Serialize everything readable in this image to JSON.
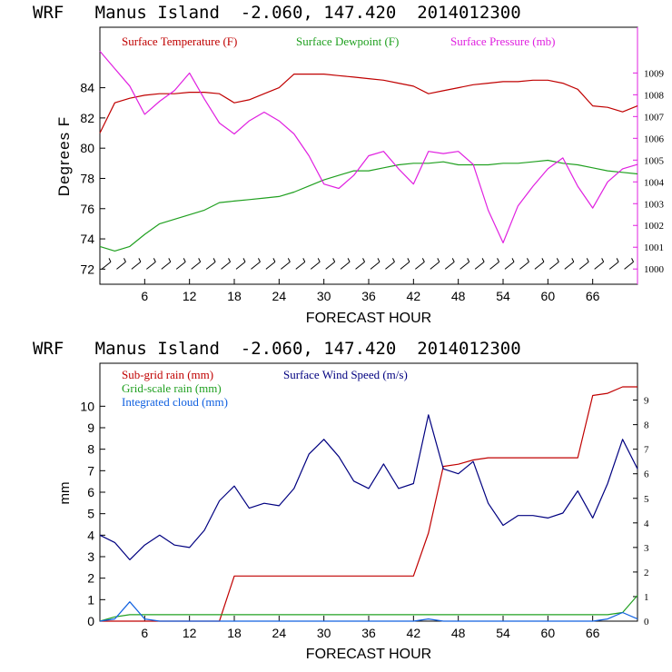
{
  "chart_data": [
    {
      "type": "line",
      "title": "WRF   Manus Island  -2.060, 147.420  2014012300",
      "xlabel": "FORECAST HOUR",
      "ylabel": "Degrees F",
      "xlim": [
        0,
        72
      ],
      "ylim": [
        71,
        88
      ],
      "y2lim": [
        999.3,
        1011.1
      ],
      "x_ticks": [
        6,
        12,
        18,
        24,
        30,
        36,
        42,
        48,
        54,
        60,
        66
      ],
      "y_ticks": [
        72,
        74,
        76,
        78,
        80,
        82,
        84
      ],
      "y2_ticks": [
        1000,
        1001,
        1002,
        1003,
        1004,
        1005,
        1006,
        1007,
        1008,
        1009
      ],
      "grid": false,
      "legend": "top",
      "colors": {
        "temperature": "#c00000",
        "dewpoint": "#20a020",
        "pressure": "#e020e0",
        "wind": "#000080",
        "axis": "#000000",
        "frame_right": "#e020e0"
      },
      "x": [
        0,
        2,
        4,
        6,
        8,
        10,
        12,
        14,
        16,
        18,
        20,
        22,
        24,
        26,
        28,
        30,
        32,
        34,
        36,
        38,
        40,
        42,
        44,
        46,
        48,
        50,
        52,
        54,
        56,
        58,
        60,
        62,
        64,
        66,
        68,
        70,
        72
      ],
      "series": [
        {
          "name": "Surface Temperature (F)",
          "axis": "left",
          "color": "#c00000",
          "values": [
            81.0,
            83.0,
            83.3,
            83.5,
            83.6,
            83.6,
            83.7,
            83.7,
            83.6,
            83.0,
            83.2,
            83.6,
            84.0,
            84.9,
            84.9,
            84.9,
            84.8,
            84.7,
            84.6,
            84.5,
            84.3,
            84.1,
            83.6,
            83.8,
            84.0,
            84.2,
            84.3,
            84.4,
            84.4,
            84.5,
            84.5,
            84.3,
            83.9,
            82.8,
            82.7,
            82.4,
            82.8
          ]
        },
        {
          "name": "Surface Dewpoint (F)",
          "axis": "left",
          "color": "#20a020",
          "values": [
            73.5,
            73.2,
            73.5,
            74.3,
            75.0,
            75.3,
            75.6,
            75.9,
            76.4,
            76.5,
            76.6,
            76.7,
            76.8,
            77.1,
            77.5,
            77.9,
            78.2,
            78.5,
            78.5,
            78.7,
            78.9,
            79.0,
            79.0,
            79.1,
            78.9,
            78.9,
            78.9,
            79.0,
            79.0,
            79.1,
            79.2,
            79.0,
            78.9,
            78.7,
            78.5,
            78.4,
            78.3
          ]
        },
        {
          "name": "Surface Pressure (mb)",
          "axis": "right",
          "color": "#e020e0",
          "values": [
            1010.0,
            1009.2,
            1008.4,
            1007.1,
            1007.7,
            1008.2,
            1009.0,
            1007.8,
            1006.7,
            1006.2,
            1006.8,
            1007.2,
            1006.8,
            1006.2,
            1005.2,
            1003.9,
            1003.7,
            1004.3,
            1005.2,
            1005.4,
            1004.6,
            1003.9,
            1005.4,
            1005.3,
            1005.4,
            1004.8,
            1002.7,
            1001.2,
            1002.9,
            1003.8,
            1004.6,
            1005.1,
            1003.8,
            1002.8,
            1004.0,
            1004.6,
            1004.8
          ]
        }
      ],
      "wind_barbs": {
        "x": [
          0,
          2,
          4,
          6,
          8,
          10,
          12,
          14,
          16,
          18,
          20,
          22,
          24,
          26,
          28,
          30,
          32,
          34,
          36,
          38,
          40,
          42,
          44,
          46,
          48,
          50,
          52,
          54,
          56,
          58,
          60,
          62,
          64,
          66,
          68,
          70
        ],
        "y": 72
      }
    },
    {
      "type": "line",
      "title": "WRF   Manus Island  -2.060, 147.420  2014012300",
      "xlabel": "FORECAST HOUR",
      "ylabel": "mm",
      "xlim": [
        0,
        72
      ],
      "ylim": [
        0,
        12
      ],
      "y2lim": [
        0,
        10.5
      ],
      "x_ticks": [
        6,
        12,
        18,
        24,
        30,
        36,
        42,
        48,
        54,
        60,
        66
      ],
      "y_ticks": [
        0,
        1,
        2,
        3,
        4,
        5,
        6,
        7,
        8,
        9,
        10
      ],
      "y2_ticks": [
        0,
        1,
        2,
        3,
        4,
        5,
        6,
        7,
        8,
        9
      ],
      "grid": false,
      "legend": "top-left",
      "x": [
        0,
        2,
        4,
        6,
        8,
        10,
        12,
        14,
        16,
        18,
        20,
        22,
        24,
        26,
        28,
        30,
        32,
        34,
        36,
        38,
        40,
        42,
        44,
        46,
        48,
        50,
        52,
        54,
        56,
        58,
        60,
        62,
        64,
        66,
        68,
        70,
        72
      ],
      "series": [
        {
          "name": "Sub-grid rain (mm)",
          "axis": "left",
          "color": "#c00000",
          "values": [
            0,
            0,
            0,
            0,
            0,
            0,
            0,
            0,
            0,
            2.1,
            2.1,
            2.1,
            2.1,
            2.1,
            2.1,
            2.1,
            2.1,
            2.1,
            2.1,
            2.1,
            2.1,
            2.1,
            4.1,
            7.2,
            7.3,
            7.5,
            7.6,
            7.6,
            7.6,
            7.6,
            7.6,
            7.6,
            7.6,
            10.5,
            10.6,
            10.9,
            10.9
          ]
        },
        {
          "name": "Grid-scale rain (mm)",
          "axis": "left",
          "color": "#20a020",
          "values": [
            0,
            0.2,
            0.3,
            0.3,
            0.3,
            0.3,
            0.3,
            0.3,
            0.3,
            0.3,
            0.3,
            0.3,
            0.3,
            0.3,
            0.3,
            0.3,
            0.3,
            0.3,
            0.3,
            0.3,
            0.3,
            0.3,
            0.3,
            0.3,
            0.3,
            0.3,
            0.3,
            0.3,
            0.3,
            0.3,
            0.3,
            0.3,
            0.3,
            0.3,
            0.3,
            0.4,
            1.2
          ]
        },
        {
          "name": "Integrated cloud (mm)",
          "axis": "left",
          "color": "#1060e0",
          "values": [
            0,
            0.1,
            0.9,
            0.1,
            0,
            0,
            0,
            0,
            0,
            0,
            0,
            0,
            0,
            0,
            0,
            0,
            0,
            0,
            0,
            0,
            0,
            0,
            0.1,
            0,
            0,
            0,
            0,
            0,
            0,
            0,
            0,
            0,
            0,
            0,
            0.1,
            0.4,
            0.1
          ]
        },
        {
          "name": "Surface Wind Speed (m/s)",
          "axis": "right",
          "color": "#000080",
          "values": [
            3.5,
            3.2,
            2.5,
            3.1,
            3.5,
            3.1,
            3.0,
            3.7,
            4.9,
            5.5,
            4.6,
            4.8,
            4.7,
            5.4,
            6.8,
            7.4,
            6.7,
            5.7,
            5.4,
            6.4,
            5.4,
            5.6,
            8.4,
            6.2,
            6.0,
            6.5,
            4.8,
            3.9,
            4.3,
            4.3,
            4.2,
            4.4,
            5.3,
            4.2,
            5.6,
            7.4,
            6.2
          ]
        }
      ]
    }
  ]
}
